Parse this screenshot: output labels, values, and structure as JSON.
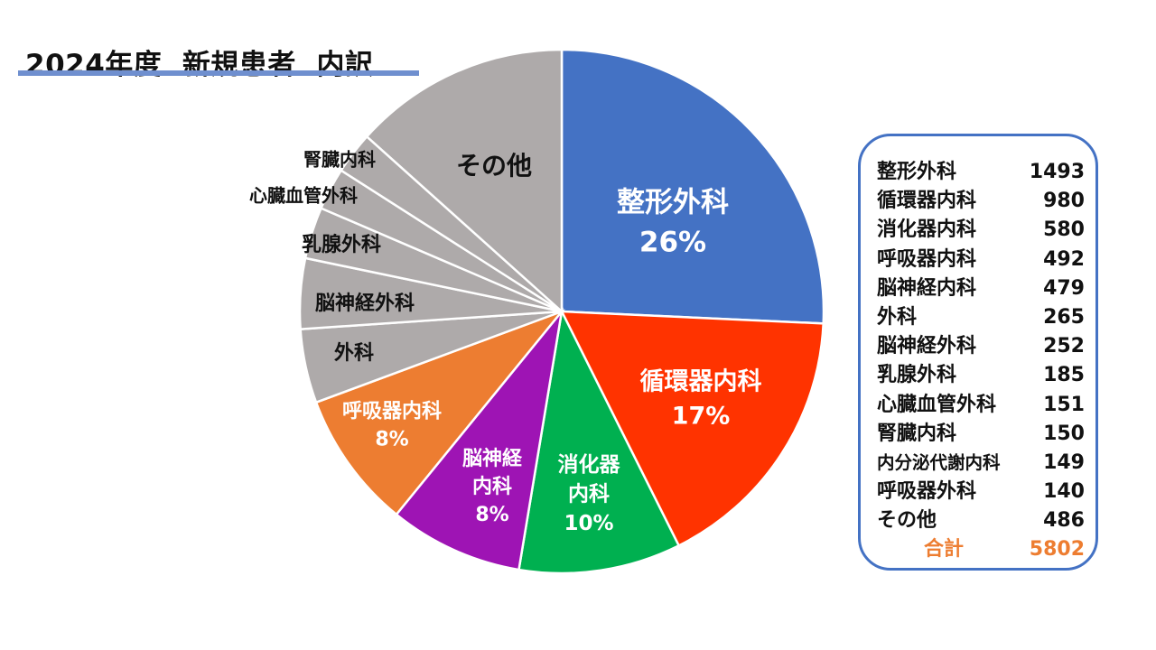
{
  "title": "2024年度  新規患者  内訳",
  "chart_data": {
    "type": "pie",
    "title": "2024年度  新規患者  内訳",
    "slices": [
      {
        "label": "整形外科",
        "value": 1493,
        "pct_label": "26%",
        "color": "#4472c4",
        "text_color": "#ffffff"
      },
      {
        "label": "循環器内科",
        "value": 980,
        "pct_label": "17%",
        "color": "#ff3300",
        "text_color": "#ffffff"
      },
      {
        "label": "消化器内科",
        "value": 580,
        "pct_label": "10%",
        "color": "#00b050",
        "text_color": "#ffffff"
      },
      {
        "label": "脳神経内科",
        "value": 479,
        "pct_label": "8%",
        "color": "#9e14b4",
        "text_color": "#ffffff"
      },
      {
        "label": "呼吸器内科",
        "value": 492,
        "pct_label": "8%",
        "color": "#ed7d31",
        "text_color": "#ffffff"
      },
      {
        "label": "外科",
        "value": 265,
        "pct_label": "",
        "color": "#aeaaaa",
        "text_color": "#111111"
      },
      {
        "label": "脳神経外科",
        "value": 252,
        "pct_label": "",
        "color": "#aeaaaa",
        "text_color": "#111111"
      },
      {
        "label": "乳腺外科",
        "value": 185,
        "pct_label": "",
        "color": "#aeaaaa",
        "text_color": "#111111"
      },
      {
        "label": "心臓血管外科",
        "value": 151,
        "pct_label": "",
        "color": "#aeaaaa",
        "text_color": "#111111"
      },
      {
        "label": "腎臓内科",
        "value": 150,
        "pct_label": "",
        "color": "#aeaaaa",
        "text_color": "#111111"
      },
      {
        "label": "その他",
        "value": 775,
        "pct_label": "",
        "color": "#aeaaaa",
        "text_color": "#111111"
      }
    ]
  },
  "legend": {
    "rows": [
      {
        "name": "整形外科",
        "value": "1493"
      },
      {
        "name": "循環器内科",
        "value": "980"
      },
      {
        "name": "消化器内科",
        "value": "580"
      },
      {
        "name": "呼吸器内科",
        "value": "492"
      },
      {
        "name": "脳神経内科",
        "value": "479"
      },
      {
        "name": "外科",
        "value": "265"
      },
      {
        "name": "脳神経外科",
        "value": "252"
      },
      {
        "name": "乳腺外科",
        "value": "185"
      },
      {
        "name": "心臓血管外科",
        "value": "151"
      },
      {
        "name": "腎臓内科",
        "value": "150"
      },
      {
        "name": "内分泌代謝内科",
        "value": "149"
      },
      {
        "name": "呼吸器外科",
        "value": "140"
      },
      {
        "name": "その他",
        "value": "486"
      }
    ],
    "total": {
      "name": "合計",
      "value": "5802"
    }
  }
}
